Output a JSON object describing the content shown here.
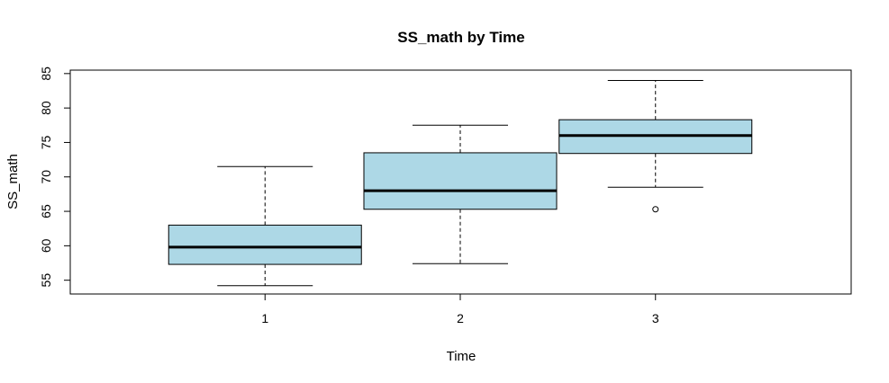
{
  "chart_data": {
    "type": "boxplot",
    "title": "SS_math by Time",
    "xlabel": "Time",
    "ylabel": "SS_math",
    "categories": [
      "1",
      "2",
      "3"
    ],
    "yticks": [
      "55",
      "60",
      "65",
      "70",
      "75",
      "80",
      "85"
    ],
    "ylim": [
      53,
      85.5
    ],
    "grid": false,
    "box_fill": "#add8e6",
    "boxes": [
      {
        "whisker_low": 54.2,
        "q1": 57.3,
        "median": 59.8,
        "q3": 63.0,
        "whisker_high": 71.5,
        "outliers": []
      },
      {
        "whisker_low": 57.4,
        "q1": 65.3,
        "median": 68.0,
        "q3": 73.5,
        "whisker_high": 77.5,
        "outliers": []
      },
      {
        "whisker_low": 68.5,
        "q1": 73.4,
        "median": 76.0,
        "q3": 78.3,
        "whisker_high": 84.0,
        "outliers": [
          65.3
        ]
      }
    ]
  }
}
